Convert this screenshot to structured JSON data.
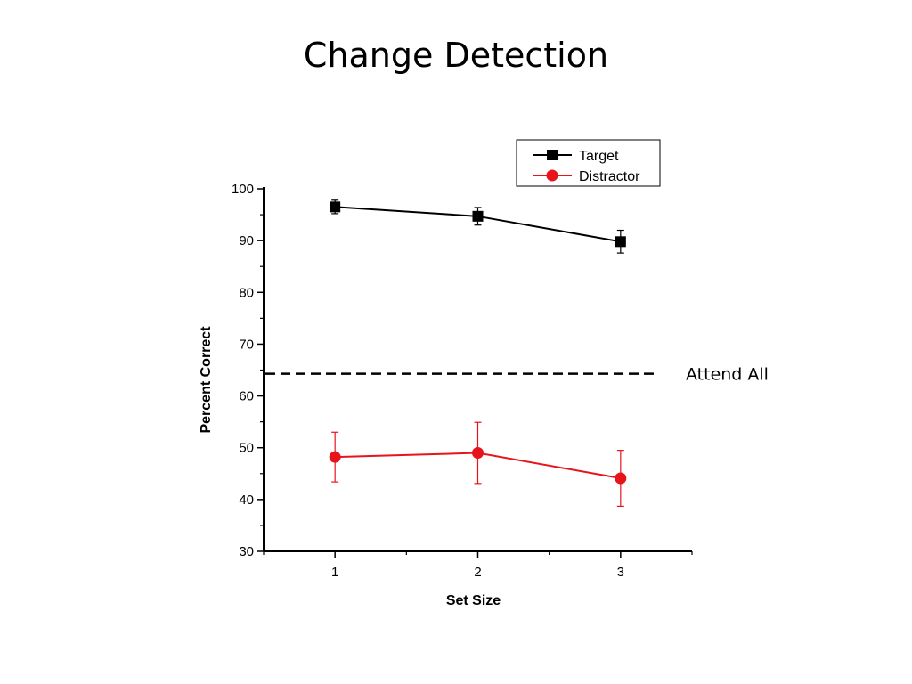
{
  "slide": {
    "title": "Change Detection"
  },
  "chart_data": {
    "type": "line",
    "title": "",
    "xlabel": "Set Size",
    "ylabel": "Percent Correct",
    "x": [
      1,
      2,
      3
    ],
    "x_ticks": [
      "1",
      "2",
      "3"
    ],
    "xlim": [
      0.5,
      3.5
    ],
    "ylim": [
      30,
      100
    ],
    "y_ticks": [
      30,
      40,
      50,
      60,
      70,
      80,
      90,
      100
    ],
    "grid": false,
    "legend_position": "top-right",
    "series": [
      {
        "name": "Target",
        "color": "#000000",
        "marker": "square",
        "values": [
          96.5,
          94.7,
          89.8
        ],
        "errors": [
          1.3,
          1.7,
          2.2
        ]
      },
      {
        "name": "Distractor",
        "color": "#e8141b",
        "marker": "circle",
        "values": [
          48.2,
          49.0,
          44.1
        ],
        "errors": [
          4.8,
          5.9,
          5.4
        ]
      }
    ],
    "reference_lines": [
      {
        "label": "Attend All",
        "y": 64.3,
        "style": "dashed",
        "color": "#000000"
      }
    ]
  }
}
